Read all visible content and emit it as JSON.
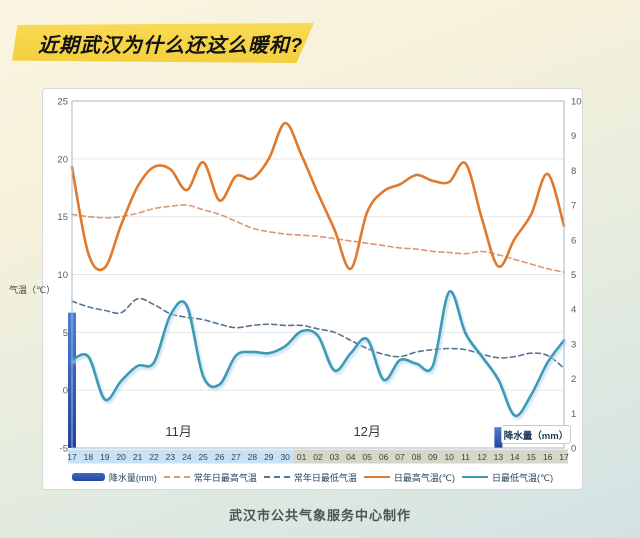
{
  "title": "近期武汉为什么还这么暖和?",
  "caption": "武汉市公共气象服务中心制作",
  "chart_data": {
    "type": "line",
    "x_axis": {
      "day_labels": [
        "17",
        "18",
        "19",
        "20",
        "21",
        "22",
        "23",
        "24",
        "25",
        "26",
        "27",
        "28",
        "29",
        "30",
        "01",
        "02",
        "03",
        "04",
        "05",
        "06",
        "07",
        "08",
        "09",
        "10",
        "11",
        "12",
        "13",
        "14",
        "15",
        "16",
        "17"
      ],
      "month_groups": [
        {
          "label": "11月",
          "count": 14,
          "label_pos": 6.5,
          "band_color": "#c8e1f4",
          "text_color": "#33475c"
        },
        {
          "label": "12月",
          "count": 17,
          "label_pos": 18,
          "band_color": "#d6d6ca",
          "text_color": "#42423a"
        }
      ]
    },
    "left_axis": {
      "label": "气温（℃）",
      "min": -5,
      "max": 25,
      "ticks": [
        25,
        20,
        15,
        10,
        5,
        0,
        -5
      ]
    },
    "right_axis": {
      "label": "降水量（mm）",
      "min": 0,
      "max": 10,
      "ticks": [
        10,
        9,
        8,
        7,
        6,
        5,
        4,
        3,
        2,
        1,
        0
      ]
    },
    "grid": {
      "gridline_values": [
        20,
        15,
        10,
        5,
        0
      ],
      "gridline_color": "#e7e7e7",
      "plot_border_color": "#a5bacb"
    },
    "series": [
      {
        "key": "precip",
        "name": "降水量(mm)",
        "type": "bar",
        "axis": "right",
        "color_top": "#4a80d6",
        "color_bottom": "#23409e",
        "values": [
          3.9,
          0,
          0,
          0,
          0,
          0,
          0,
          0,
          0,
          0,
          0,
          0,
          0,
          0,
          0,
          0,
          0,
          0,
          0,
          0,
          0,
          0,
          0,
          0,
          0,
          0,
          0.6,
          0,
          0,
          0,
          0
        ]
      },
      {
        "key": "normal-high",
        "name": "常年日最高气温",
        "type": "line",
        "style": "dashed",
        "color": "#dd9574",
        "values": [
          15.2,
          15.0,
          14.9,
          15.0,
          15.3,
          15.7,
          15.9,
          16.0,
          15.6,
          15.2,
          14.6,
          14.0,
          13.7,
          13.5,
          13.4,
          13.3,
          13.1,
          12.9,
          12.7,
          12.5,
          12.3,
          12.2,
          12.0,
          11.9,
          11.8,
          12.0,
          11.7,
          11.3,
          10.9,
          10.5,
          10.2
        ]
      },
      {
        "key": "normal-low",
        "name": "常年日最低气温",
        "type": "line",
        "style": "dashed",
        "color": "#56748e",
        "values": [
          7.7,
          7.2,
          6.9,
          6.7,
          7.9,
          7.4,
          6.6,
          6.3,
          6.1,
          5.7,
          5.4,
          5.6,
          5.7,
          5.6,
          5.6,
          5.3,
          5.0,
          4.3,
          3.6,
          3.1,
          2.9,
          3.3,
          3.5,
          3.6,
          3.5,
          3.1,
          2.8,
          2.9,
          3.2,
          3.0,
          1.9
        ]
      },
      {
        "key": "daily-high",
        "name": "日最高气温(℃)",
        "type": "line",
        "style": "solid",
        "color": "#e0792c",
        "values": [
          19.3,
          11.8,
          10.6,
          14.3,
          17.6,
          19.3,
          19.1,
          17.3,
          19.7,
          16.4,
          18.5,
          18.3,
          20.0,
          23.1,
          20.3,
          17.0,
          13.9,
          10.5,
          15.4,
          17.2,
          17.8,
          18.6,
          18.1,
          18.0,
          19.6,
          14.8,
          10.7,
          13.1,
          15.2,
          18.7,
          14.2
        ]
      },
      {
        "key": "daily-low",
        "name": "日最低气温(℃)",
        "type": "line",
        "style": "solid",
        "color": "#3e9ab6",
        "shadow": "#bdd9ec",
        "values": [
          2.6,
          2.9,
          -0.8,
          0.8,
          2.1,
          2.4,
          6.5,
          7.3,
          1.2,
          0.5,
          3.0,
          3.3,
          3.2,
          3.8,
          5.1,
          4.7,
          1.7,
          3.2,
          4.4,
          0.9,
          2.6,
          2.3,
          2.1,
          8.5,
          4.9,
          2.9,
          0.9,
          -2.2,
          -0.4,
          2.4,
          4.3
        ]
      }
    ]
  }
}
